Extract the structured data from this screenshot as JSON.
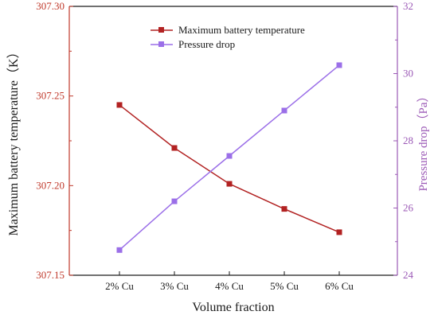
{
  "chart_data": {
    "type": "line",
    "categories": [
      "2% Cu",
      "3% Cu",
      "4% Cu",
      "5% Cu",
      "6% Cu"
    ],
    "xlabel": "Volume fraction",
    "ylabel": "Maximum battery temperature（K）",
    "y2label": "Pressure drop（Pa）",
    "ylim": [
      307.15,
      307.3
    ],
    "y2lim": [
      24,
      32
    ],
    "yticks": [
      "307.15",
      "307.20",
      "307.25",
      "307.30"
    ],
    "y2ticks": [
      "24",
      "26",
      "28",
      "30",
      "32"
    ],
    "grid": false,
    "legend_position": "top-center",
    "series": [
      {
        "name": "Maximum battery temperature",
        "axis": "left",
        "color": "#b22222",
        "marker": "square",
        "values": [
          307.245,
          307.221,
          307.201,
          307.187,
          307.174
        ]
      },
      {
        "name": "Pressure drop",
        "axis": "right",
        "color": "#9b6fe8",
        "marker": "square",
        "values": [
          24.75,
          26.2,
          27.55,
          28.9,
          30.25
        ]
      }
    ]
  }
}
